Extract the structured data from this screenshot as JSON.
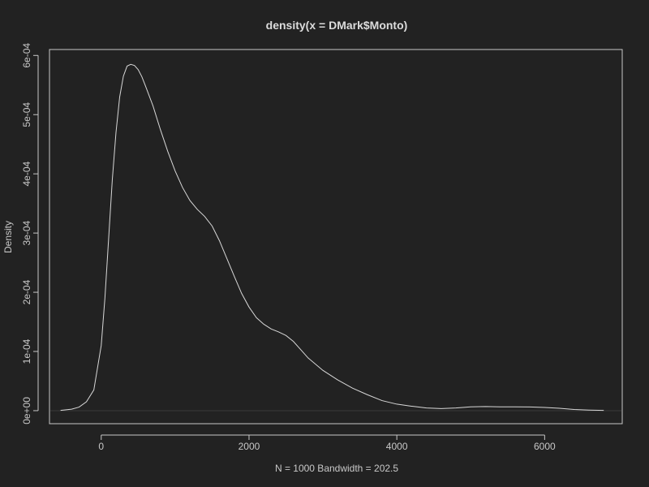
{
  "chart_data": {
    "type": "line",
    "title": "density(x = DMark$Monto)",
    "xlabel": "N = 1000    Bandwidth = 202.5",
    "ylabel": "Density",
    "xlim": [
      -700,
      7050
    ],
    "ylim": [
      -2.2e-05,
      0.00061
    ],
    "x_ticks": [
      {
        "value": 0,
        "label": "0"
      },
      {
        "value": 2000,
        "label": "2000"
      },
      {
        "value": 4000,
        "label": "4000"
      },
      {
        "value": 6000,
        "label": "6000"
      }
    ],
    "y_ticks": [
      {
        "value": 0,
        "label": "0e+00"
      },
      {
        "value": 0.0001,
        "label": "1e-04"
      },
      {
        "value": 0.0002,
        "label": "2e-04"
      },
      {
        "value": 0.0003,
        "label": "3e-04"
      },
      {
        "value": 0.0004,
        "label": "4e-04"
      },
      {
        "value": 0.0005,
        "label": "5e-04"
      },
      {
        "value": 0.0006,
        "label": "6e-04"
      }
    ],
    "series": [
      {
        "name": "density",
        "x": [
          -550,
          -400,
          -300,
          -200,
          -100,
          0,
          50,
          100,
          150,
          200,
          250,
          300,
          350,
          400,
          450,
          500,
          550,
          600,
          700,
          800,
          900,
          1000,
          1100,
          1200,
          1300,
          1400,
          1500,
          1600,
          1700,
          1800,
          1900,
          2000,
          2100,
          2200,
          2300,
          2400,
          2500,
          2600,
          2700,
          2800,
          3000,
          3200,
          3400,
          3600,
          3800,
          4000,
          4200,
          4400,
          4600,
          4800,
          5000,
          5200,
          5400,
          5600,
          5800,
          6000,
          6200,
          6400,
          6600,
          6800
        ],
        "y": [
          5e-07,
          2.5e-06,
          6e-06,
          1.5e-05,
          3.5e-05,
          0.00011,
          0.00019,
          0.00029,
          0.00039,
          0.00047,
          0.00053,
          0.000565,
          0.000582,
          0.000585,
          0.000583,
          0.000576,
          0.000564,
          0.000548,
          0.000515,
          0.000475,
          0.000438,
          0.000405,
          0.000377,
          0.000355,
          0.00034,
          0.000328,
          0.000312,
          0.000287,
          0.000257,
          0.000227,
          0.000198,
          0.000175,
          0.000157,
          0.000146,
          0.000138,
          0.000133,
          0.000127,
          0.000117,
          0.000103,
          8.9e-05,
          6.8e-05,
          5.2e-05,
          3.8e-05,
          2.7e-05,
          1.7e-05,
          1.1e-05,
          7.5e-06,
          4.5e-06,
          3.5e-06,
          4.5e-06,
          6.5e-06,
          7e-06,
          6.5e-06,
          6.5e-06,
          6.2e-06,
          5.5e-06,
          4e-06,
          2e-06,
          1e-06,
          5e-07
        ]
      }
    ]
  }
}
